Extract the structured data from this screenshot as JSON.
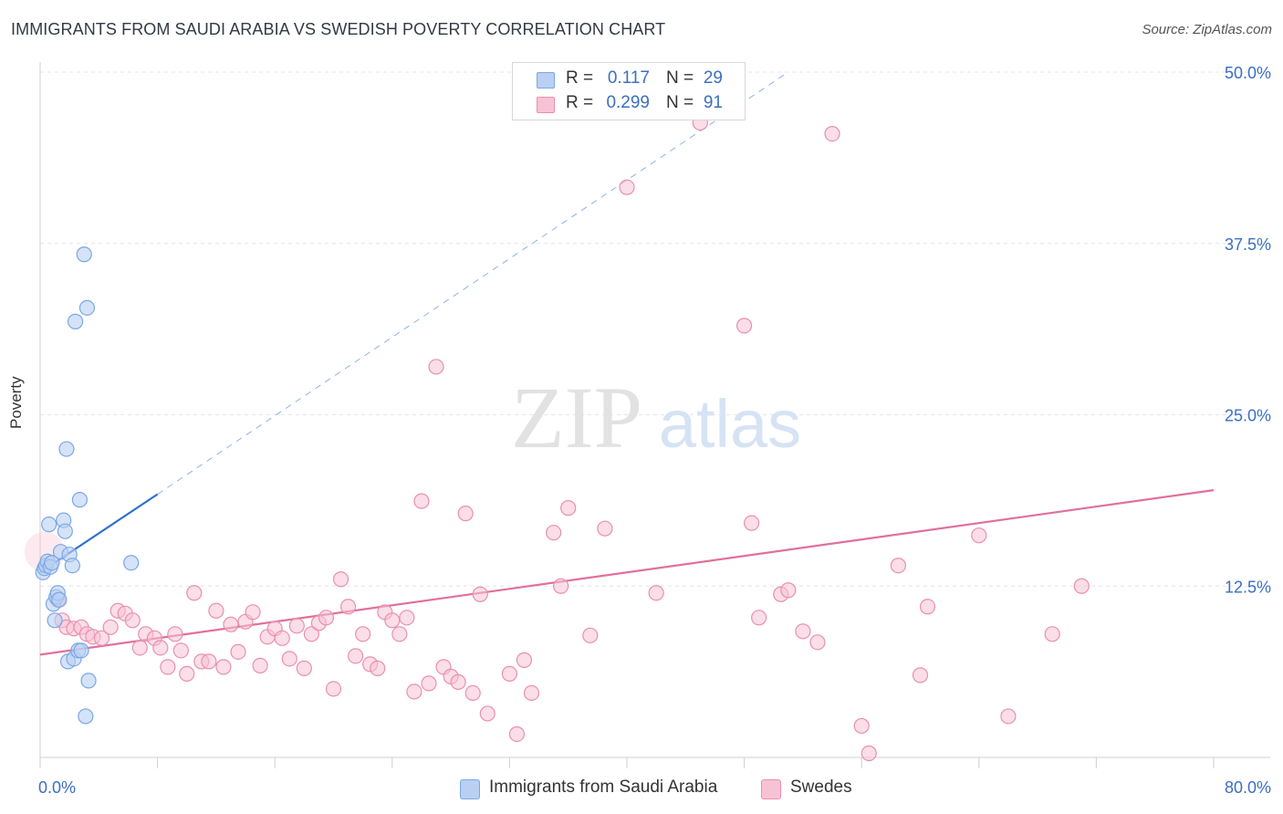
{
  "title": "IMMIGRANTS FROM SAUDI ARABIA VS SWEDISH POVERTY CORRELATION CHART",
  "source": "Source: ZipAtlas.com",
  "watermark": {
    "zip": "ZIP",
    "atlas": "atlas"
  },
  "colors": {
    "blue": "#7aa7e6",
    "blue_fill": "#b9d0f3",
    "blue_line": "#2f6fd0",
    "pink": "#e98fb0",
    "pink_fill": "#f7c3d4",
    "pink_line": "#e0709a",
    "axis_text": "#3a6fc4"
  },
  "legend": {
    "rows": [
      {
        "r_label": "R =",
        "r_value": "0.117",
        "n_label": "N =",
        "n_value": "29"
      },
      {
        "r_label": "R =",
        "r_value": "0.299",
        "n_label": "N =",
        "n_value": "91"
      }
    ]
  },
  "bottom_legend": {
    "series1": "Immigrants from Saudi Arabia",
    "series2": "Swedes"
  },
  "chart_data": {
    "type": "scatter",
    "title": "IMMIGRANTS FROM SAUDI ARABIA VS SWEDISH POVERTY CORRELATION CHART",
    "xlabel": "",
    "ylabel": "Poverty",
    "xlim": [
      0,
      80
    ],
    "ylim": [
      0,
      50
    ],
    "x_tick_labels": [
      "0.0%",
      "80.0%"
    ],
    "y_ticks": [
      12.5,
      25.0,
      37.5,
      50.0
    ],
    "y_tick_labels": [
      "12.5%",
      "25.0%",
      "37.5%",
      "50.0%"
    ],
    "grid": true,
    "series": [
      {
        "name": "Immigrants from Saudi Arabia",
        "points": [
          [
            0.2,
            13.5
          ],
          [
            0.3,
            13.8
          ],
          [
            0.4,
            14.0
          ],
          [
            0.5,
            14.3
          ],
          [
            0.6,
            17.0
          ],
          [
            0.7,
            13.9
          ],
          [
            0.8,
            14.2
          ],
          [
            0.9,
            11.2
          ],
          [
            1.0,
            10.0
          ],
          [
            1.1,
            11.7
          ],
          [
            1.2,
            12.0
          ],
          [
            1.3,
            11.5
          ],
          [
            1.4,
            15.0
          ],
          [
            1.6,
            17.3
          ],
          [
            1.7,
            16.5
          ],
          [
            1.8,
            22.5
          ],
          [
            1.9,
            7.0
          ],
          [
            2.0,
            14.8
          ],
          [
            2.2,
            14.0
          ],
          [
            2.3,
            7.2
          ],
          [
            2.4,
            31.8
          ],
          [
            2.6,
            7.8
          ],
          [
            2.7,
            18.8
          ],
          [
            2.8,
            7.8
          ],
          [
            3.0,
            36.7
          ],
          [
            3.2,
            32.8
          ],
          [
            3.3,
            5.6
          ],
          [
            3.1,
            3.0
          ],
          [
            6.2,
            14.2
          ]
        ],
        "trend": {
          "x": [
            0,
            8
          ],
          "y": [
            13.5,
            19.2
          ],
          "dashed_extension_to": [
            51,
            50
          ]
        }
      },
      {
        "name": "Swedes",
        "points": [
          [
            0.3,
            15.0
          ],
          [
            1.2,
            11.5
          ],
          [
            1.5,
            10.0
          ],
          [
            1.8,
            9.5
          ],
          [
            2.3,
            9.4
          ],
          [
            2.8,
            9.5
          ],
          [
            3.2,
            9.0
          ],
          [
            3.6,
            8.8
          ],
          [
            4.2,
            8.7
          ],
          [
            4.8,
            9.5
          ],
          [
            5.3,
            10.7
          ],
          [
            5.8,
            10.5
          ],
          [
            6.3,
            10.0
          ],
          [
            6.8,
            8.0
          ],
          [
            7.2,
            9.0
          ],
          [
            7.8,
            8.7
          ],
          [
            8.2,
            8.0
          ],
          [
            8.7,
            6.6
          ],
          [
            9.2,
            9.0
          ],
          [
            9.6,
            7.8
          ],
          [
            10.0,
            6.1
          ],
          [
            10.5,
            12.0
          ],
          [
            11.0,
            7.0
          ],
          [
            11.5,
            7.0
          ],
          [
            12.0,
            10.7
          ],
          [
            12.5,
            6.6
          ],
          [
            13.0,
            9.7
          ],
          [
            13.5,
            7.7
          ],
          [
            14.0,
            9.9
          ],
          [
            14.5,
            10.6
          ],
          [
            15.0,
            6.7
          ],
          [
            15.5,
            8.8
          ],
          [
            16.0,
            9.4
          ],
          [
            16.5,
            8.7
          ],
          [
            17.0,
            7.2
          ],
          [
            17.5,
            9.6
          ],
          [
            18.0,
            6.5
          ],
          [
            18.5,
            9.0
          ],
          [
            19.0,
            9.8
          ],
          [
            19.5,
            10.2
          ],
          [
            20.0,
            5.0
          ],
          [
            20.5,
            13.0
          ],
          [
            21.0,
            11.0
          ],
          [
            21.5,
            7.4
          ],
          [
            22.0,
            9.0
          ],
          [
            22.5,
            6.8
          ],
          [
            23.0,
            6.5
          ],
          [
            23.5,
            10.6
          ],
          [
            24.0,
            10.0
          ],
          [
            24.5,
            9.0
          ],
          [
            25.0,
            10.2
          ],
          [
            25.5,
            4.8
          ],
          [
            26.0,
            18.7
          ],
          [
            26.5,
            5.4
          ],
          [
            27.0,
            28.5
          ],
          [
            27.5,
            6.6
          ],
          [
            28.0,
            5.9
          ],
          [
            28.5,
            5.5
          ],
          [
            29.0,
            17.8
          ],
          [
            29.5,
            4.7
          ],
          [
            30.0,
            11.9
          ],
          [
            30.5,
            3.2
          ],
          [
            32.0,
            6.1
          ],
          [
            32.5,
            1.7
          ],
          [
            33.0,
            7.1
          ],
          [
            33.5,
            4.7
          ],
          [
            35.0,
            16.4
          ],
          [
            35.5,
            12.5
          ],
          [
            36.0,
            18.2
          ],
          [
            37.5,
            8.9
          ],
          [
            38.5,
            16.7
          ],
          [
            40.0,
            41.6
          ],
          [
            45.0,
            46.3
          ],
          [
            48.0,
            31.5
          ],
          [
            48.5,
            17.1
          ],
          [
            49.0,
            10.2
          ],
          [
            50.5,
            11.9
          ],
          [
            51.0,
            12.2
          ],
          [
            52.0,
            9.2
          ],
          [
            53.0,
            8.4
          ],
          [
            54.0,
            45.5
          ],
          [
            56.0,
            2.3
          ],
          [
            56.5,
            0.3
          ],
          [
            58.5,
            14.0
          ],
          [
            60.5,
            11.0
          ],
          [
            64.0,
            16.2
          ],
          [
            71.0,
            12.5
          ],
          [
            66.0,
            3.0
          ],
          [
            69.0,
            9.0
          ],
          [
            42.0,
            12.0
          ],
          [
            60.0,
            6.0
          ]
        ],
        "trend": {
          "x": [
            0,
            80
          ],
          "y": [
            7.5,
            19.5
          ]
        }
      }
    ]
  }
}
